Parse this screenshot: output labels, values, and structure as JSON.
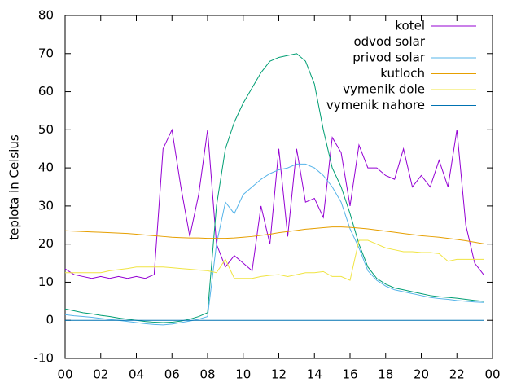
{
  "chart_data": {
    "type": "line",
    "ylabel": "teplota in Celsius",
    "x": [
      0,
      0.5,
      1,
      1.5,
      2,
      2.5,
      3,
      3.5,
      4,
      4.5,
      5,
      5.5,
      6,
      6.5,
      7,
      7.5,
      8,
      8.5,
      9,
      9.5,
      10,
      10.5,
      11,
      11.5,
      12,
      12.5,
      13,
      13.5,
      14,
      14.5,
      15,
      15.5,
      16,
      16.5,
      17,
      17.5,
      18,
      18.5,
      19,
      19.5,
      20,
      20.5,
      21,
      21.5,
      22,
      22.5,
      23,
      23.5
    ],
    "xlim": [
      0,
      24
    ],
    "xticks": [
      {
        "value": 0,
        "label": "00"
      },
      {
        "value": 2,
        "label": "02"
      },
      {
        "value": 4,
        "label": "04"
      },
      {
        "value": 6,
        "label": "06"
      },
      {
        "value": 8,
        "label": "08"
      },
      10,
      12,
      14,
      16,
      18,
      20,
      22,
      {
        "value": 24,
        "label": "00"
      }
    ],
    "ylim": [
      -10,
      80
    ],
    "yticks": [
      -10,
      0,
      10,
      20,
      30,
      40,
      50,
      60,
      70,
      80
    ],
    "legend": "top-right",
    "series": [
      {
        "name": "kotel",
        "color": "#9400d3",
        "values": [
          13.5,
          12,
          11.5,
          11,
          11.5,
          11,
          11.5,
          11,
          11.5,
          11,
          12,
          45,
          50,
          35,
          22,
          33,
          50,
          20,
          14,
          17,
          15,
          13,
          30,
          20,
          45,
          22,
          45,
          31,
          32,
          27,
          48,
          44,
          30,
          46,
          40,
          40,
          38,
          37,
          45,
          35,
          38,
          35,
          42,
          35,
          50,
          25,
          15,
          12
        ]
      },
      {
        "name": "odvod solar",
        "color": "#009e73",
        "values": [
          3,
          2.5,
          2,
          1.7,
          1.3,
          1,
          0.6,
          0.3,
          0,
          -0.3,
          -0.5,
          -0.6,
          -0.5,
          -0.2,
          0.3,
          1,
          2,
          30,
          45,
          52,
          57,
          61,
          65,
          68,
          69,
          69.5,
          70,
          68,
          62,
          50,
          40,
          35,
          28,
          20,
          14,
          11,
          9.5,
          8.5,
          8,
          7.5,
          7,
          6.5,
          6.2,
          6,
          5.8,
          5.5,
          5.2,
          5
        ]
      },
      {
        "name": "privod solar",
        "color": "#56b4e9",
        "values": [
          1.5,
          1.2,
          1,
          0.8,
          0.5,
          0.2,
          0,
          -0.3,
          -0.6,
          -0.9,
          -1.1,
          -1.2,
          -1,
          -0.6,
          -0.2,
          0.3,
          1,
          20,
          31,
          28,
          33,
          35,
          37,
          38.5,
          39.5,
          40,
          41,
          41,
          40,
          38,
          35,
          31,
          24,
          19,
          13,
          10.5,
          9,
          8,
          7.5,
          7,
          6.5,
          6,
          5.7,
          5.5,
          5.2,
          5,
          4.8,
          4.7
        ]
      },
      {
        "name": "kutloch",
        "color": "#e69f00",
        "values": [
          23.5,
          23.4,
          23.3,
          23.2,
          23.1,
          23,
          22.9,
          22.8,
          22.6,
          22.4,
          22.2,
          22,
          21.8,
          21.7,
          21.6,
          21.6,
          21.5,
          21.5,
          21.5,
          21.6,
          21.8,
          22,
          22.3,
          22.6,
          23,
          23.3,
          23.6,
          23.9,
          24.1,
          24.3,
          24.5,
          24.5,
          24.4,
          24.2,
          24,
          23.7,
          23.4,
          23.1,
          22.8,
          22.5,
          22.2,
          22,
          21.8,
          21.5,
          21.2,
          20.9,
          20.5,
          20.1
        ]
      },
      {
        "name": "vymenik dole",
        "color": "#f0e442",
        "values": [
          12.5,
          12.5,
          12.5,
          12.5,
          12.5,
          13,
          13.3,
          13.6,
          14,
          14,
          14,
          14,
          13.8,
          13.6,
          13.4,
          13.2,
          13,
          12.5,
          16,
          11,
          11,
          11,
          11.5,
          11.8,
          12,
          11.5,
          12,
          12.5,
          12.5,
          12.8,
          11.5,
          11.5,
          10.5,
          21,
          21,
          20,
          19,
          18.5,
          18,
          18,
          17.8,
          17.8,
          17.5,
          15.5,
          16,
          16,
          16,
          16
        ]
      },
      {
        "name": "vymenik nahore",
        "color": "#0072b2",
        "values": [
          0,
          0,
          0,
          0,
          0,
          0,
          0,
          0,
          0,
          0,
          0,
          0,
          0,
          0,
          0,
          0,
          0,
          0,
          0,
          0,
          0,
          0,
          0,
          0,
          0,
          0,
          0,
          0,
          0,
          0,
          0,
          0,
          0,
          0,
          0,
          0,
          0,
          0,
          0,
          0,
          0,
          0,
          0,
          0,
          0,
          0,
          0,
          0
        ]
      }
    ]
  }
}
